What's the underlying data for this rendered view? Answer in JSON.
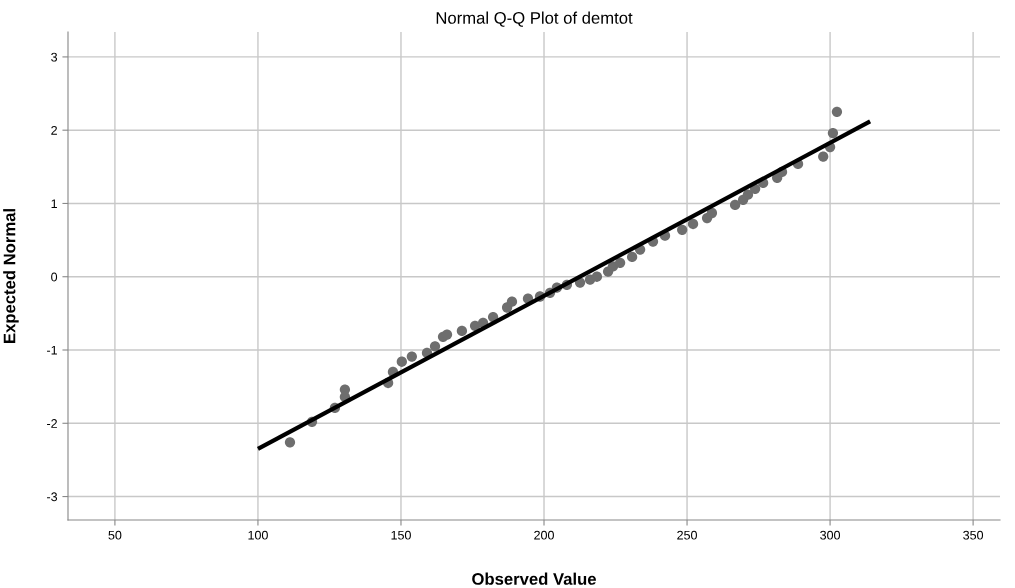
{
  "chart_data": {
    "type": "scatter",
    "title": "Normal Q-Q Plot of demtot",
    "xlabel": "Observed Value",
    "ylabel": "Expected Normal",
    "xlim": [
      33.6,
      359.4
    ],
    "ylim": [
      -3.32,
      3.34
    ],
    "xticks": [
      50,
      100,
      150,
      200,
      250,
      300,
      350
    ],
    "yticks": [
      -3,
      -2,
      -1,
      0,
      1,
      2,
      3
    ],
    "grid": true,
    "marker": "circle",
    "legend": false,
    "series": [
      {
        "color": "#6e6e6e",
        "x": [
          111.2,
          118.9,
          126.9,
          130.4,
          130.4,
          145.5,
          147.2,
          150.3,
          153.8,
          159.1,
          161.9,
          164.7,
          166.1,
          171.3,
          175.9,
          178.7,
          182.2,
          187.1,
          188.8,
          194.4,
          198.6,
          202.1,
          204.5,
          208,
          212.6,
          216.1,
          218.5,
          222.4,
          224.1,
          226.6,
          230.8,
          233.6,
          238.1,
          242.3,
          248.3,
          252.1,
          257,
          258.7,
          266.8,
          269.6,
          271.3,
          273.8,
          276.6,
          281.5,
          283.2,
          288.8,
          297.6,
          300,
          301,
          302.4
        ],
        "values": [
          -2.26,
          -1.98,
          -1.79,
          -1.54,
          -1.64,
          -1.45,
          -1.3,
          -1.16,
          -1.09,
          -1.04,
          -0.95,
          -0.82,
          -0.79,
          -0.74,
          -0.67,
          -0.63,
          -0.55,
          -0.42,
          -0.34,
          -0.3,
          -0.27,
          -0.22,
          -0.15,
          -0.11,
          -0.08,
          -0.04,
          0,
          0.07,
          0.14,
          0.19,
          0.27,
          0.37,
          0.48,
          0.56,
          0.64,
          0.72,
          0.8,
          0.87,
          0.98,
          1.05,
          1.12,
          1.2,
          1.28,
          1.35,
          1.43,
          1.54,
          1.64,
          1.77,
          1.96,
          2.25
        ]
      },
      {
        "type": "line",
        "color": "#000000",
        "marker": "none",
        "x": [
          100,
          314
        ],
        "values": [
          -2.35,
          2.12
        ]
      }
    ]
  }
}
